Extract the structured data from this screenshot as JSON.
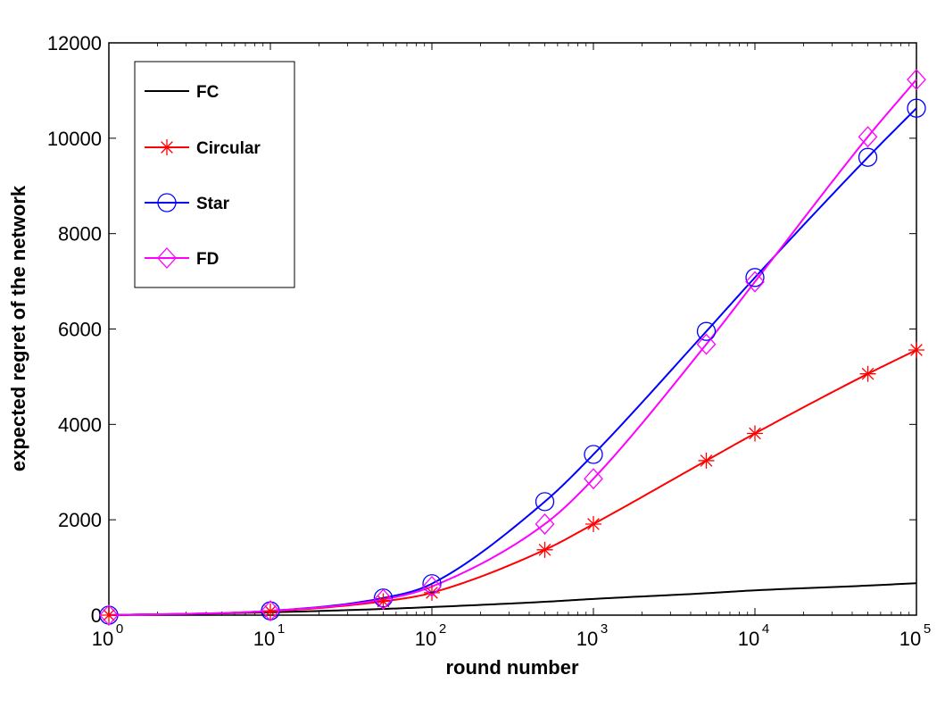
{
  "chart_data": {
    "type": "line",
    "title": "",
    "xlabel": "round number",
    "ylabel": "expected regret of the network",
    "xscale": "log",
    "xlim": [
      1,
      100000
    ],
    "ylim": [
      0,
      12000
    ],
    "x_ticks": [
      {
        "base": "10",
        "exp": "0",
        "value": 1
      },
      {
        "base": "10",
        "exp": "1",
        "value": 10
      },
      {
        "base": "10",
        "exp": "2",
        "value": 100
      },
      {
        "base": "10",
        "exp": "3",
        "value": 1000
      },
      {
        "base": "10",
        "exp": "4",
        "value": 10000
      },
      {
        "base": "10",
        "exp": "5",
        "value": 100000
      }
    ],
    "y_ticks": [
      "0",
      "2000",
      "4000",
      "6000",
      "8000",
      "10000",
      "12000"
    ],
    "grid": false,
    "legend_position": "top-left",
    "series": [
      {
        "name": "FC",
        "color": "#000000",
        "marker": "none",
        "x": [
          1,
          10,
          50,
          100,
          500,
          1000,
          5000,
          10000,
          50000,
          100000
        ],
        "y": [
          0,
          60,
          130,
          170,
          280,
          340,
          460,
          520,
          620,
          670
        ]
      },
      {
        "name": "Circular",
        "color": "#ff0000",
        "marker": "star",
        "x": [
          1,
          10,
          50,
          100,
          500,
          1000,
          5000,
          10000,
          50000,
          100000
        ],
        "y": [
          0,
          80,
          290,
          470,
          1370,
          1910,
          3240,
          3810,
          5060,
          5560
        ]
      },
      {
        "name": "Star",
        "color": "#0000ff",
        "marker": "circle",
        "x": [
          1,
          10,
          50,
          100,
          500,
          1000,
          5000,
          10000,
          50000,
          100000
        ],
        "y": [
          0,
          90,
          360,
          660,
          2380,
          3370,
          5950,
          7080,
          9600,
          10630
        ]
      },
      {
        "name": "FD",
        "color": "#ff00ff",
        "marker": "diamond",
        "x": [
          1,
          10,
          50,
          100,
          500,
          1000,
          5000,
          10000,
          50000,
          100000
        ],
        "y": [
          0,
          90,
          330,
          600,
          1910,
          2860,
          5680,
          6990,
          10030,
          11230
        ]
      }
    ]
  }
}
